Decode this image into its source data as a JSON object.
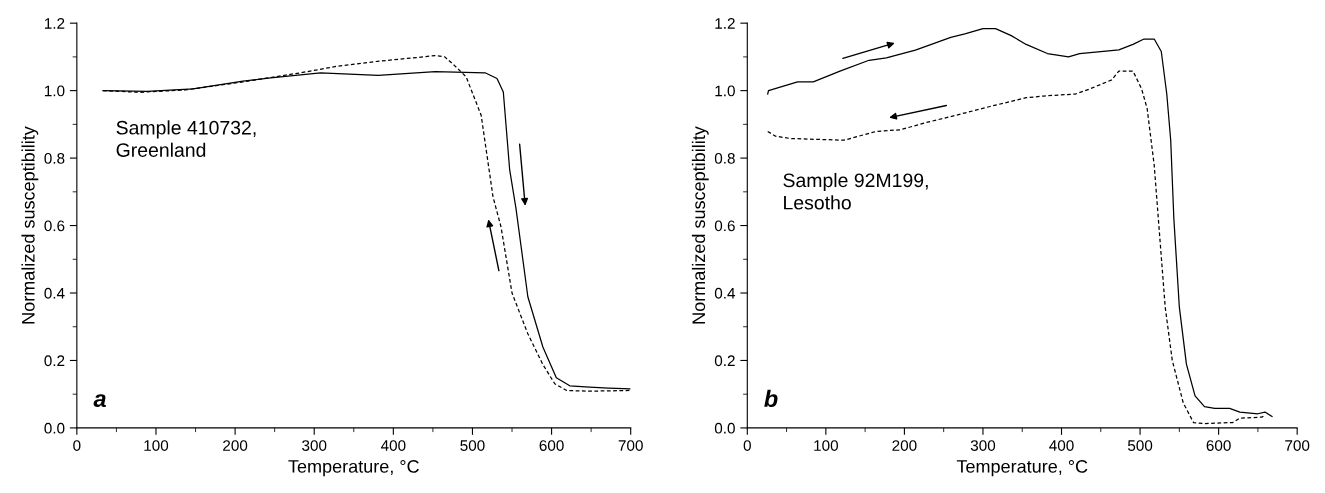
{
  "chart_data": [
    {
      "type": "line",
      "xlabel": "Temperature, °C",
      "ylabel": "Normalized susceptibility",
      "annotations": [
        "Sample 410732,\nGreenland",
        "a"
      ],
      "xlim": [
        0,
        700
      ],
      "ylim": [
        0,
        1.2
      ],
      "xticks": [
        0,
        100,
        200,
        300,
        400,
        500,
        600,
        700
      ],
      "yticks": [
        {
          "value": 0,
          "label": "0.0"
        },
        {
          "value": 0.2,
          "label": "0.2"
        },
        {
          "value": 0.4,
          "label": "0.4"
        },
        {
          "value": 0.6,
          "label": "0.6"
        },
        {
          "value": 0.8,
          "label": "0.8"
        },
        {
          "value": 1.0,
          "label": "1.0"
        },
        {
          "value": 1.2,
          "label": "1.2"
        }
      ],
      "grid": false,
      "legend": false,
      "series": [
        {
          "color": "#000000",
          "line_style": "solid",
          "x": [
            33,
            89,
            147,
            210,
            245,
            308,
            381,
            453,
            516,
            531,
            539,
            547,
            555,
            570,
            589,
            606,
            623,
            648,
            672,
            699
          ],
          "values": [
            1.0,
            0.998,
            1.005,
            1.028,
            1.038,
            1.053,
            1.045,
            1.056,
            1.053,
            1.036,
            0.996,
            0.766,
            0.651,
            0.389,
            0.24,
            0.149,
            0.125,
            0.121,
            0.118,
            0.116
          ]
        },
        {
          "color": "#000000",
          "line_style": "dashed",
          "x": [
            33,
            79,
            137,
            210,
            283,
            331,
            380,
            429,
            453,
            465,
            477,
            492,
            511,
            526,
            536,
            550,
            570,
            589,
            604,
            619,
            648,
            699
          ],
          "values": [
            1.0,
            0.995,
            1.002,
            1.026,
            1.053,
            1.073,
            1.087,
            1.098,
            1.104,
            1.1,
            1.075,
            1.041,
            0.927,
            0.685,
            0.597,
            0.4,
            0.279,
            0.188,
            0.131,
            0.111,
            0.109,
            0.111
          ]
        }
      ]
    },
    {
      "type": "line",
      "xlabel": "Temperature, °C",
      "ylabel": "Normalized susceptibility",
      "annotations": [
        "Sample 92M199,\nLesotho",
        "b"
      ],
      "xlim": [
        0,
        700
      ],
      "ylim": [
        0,
        1.2
      ],
      "xticks": [
        0,
        100,
        200,
        300,
        400,
        500,
        600,
        700
      ],
      "yticks": [
        {
          "value": 0,
          "label": "0.0"
        },
        {
          "value": 0.2,
          "label": "0.2"
        },
        {
          "value": 0.4,
          "label": "0.4"
        },
        {
          "value": 0.6,
          "label": "0.6"
        },
        {
          "value": 0.8,
          "label": "0.8"
        },
        {
          "value": 1.0,
          "label": "1.0"
        },
        {
          "value": 1.2,
          "label": "1.2"
        }
      ],
      "grid": false,
      "legend": false,
      "series": [
        {
          "color": "#000000",
          "line_style": "solid",
          "x": [
            26,
            27,
            64,
            84,
            118,
            155,
            177,
            214,
            259,
            268,
            277,
            300,
            316,
            336,
            355,
            382,
            409,
            423,
            450,
            473,
            491,
            505,
            518,
            527,
            534,
            539,
            543,
            550,
            559,
            570,
            582,
            595,
            614,
            627,
            650,
            659,
            668
          ],
          "values": [
            0.99,
            1.0,
            1.026,
            1.026,
            1.058,
            1.09,
            1.097,
            1.12,
            1.158,
            1.163,
            1.168,
            1.184,
            1.184,
            1.163,
            1.137,
            1.11,
            1.1,
            1.11,
            1.116,
            1.121,
            1.137,
            1.153,
            1.153,
            1.116,
            0.99,
            0.853,
            0.621,
            0.358,
            0.189,
            0.095,
            0.063,
            0.058,
            0.058,
            0.047,
            0.042,
            0.047,
            0.034
          ]
        },
        {
          "color": "#000000",
          "line_style": "dashed",
          "x": [
            26,
            36,
            55,
            123,
            164,
            195,
            227,
            264,
            309,
            355,
            377,
            418,
            436,
            464,
            473,
            491,
            502,
            509,
            518,
            525,
            532,
            541,
            555,
            568,
            582,
            618,
            627,
            655,
            659
          ],
          "values": [
            0.879,
            0.865,
            0.858,
            0.853,
            0.879,
            0.884,
            0.905,
            0.926,
            0.953,
            0.979,
            0.984,
            0.99,
            1.005,
            1.032,
            1.058,
            1.058,
            1.005,
            0.947,
            0.779,
            0.568,
            0.358,
            0.2,
            0.074,
            0.016,
            0.013,
            0.016,
            0.029,
            0.032,
            0.037
          ]
        }
      ]
    }
  ]
}
